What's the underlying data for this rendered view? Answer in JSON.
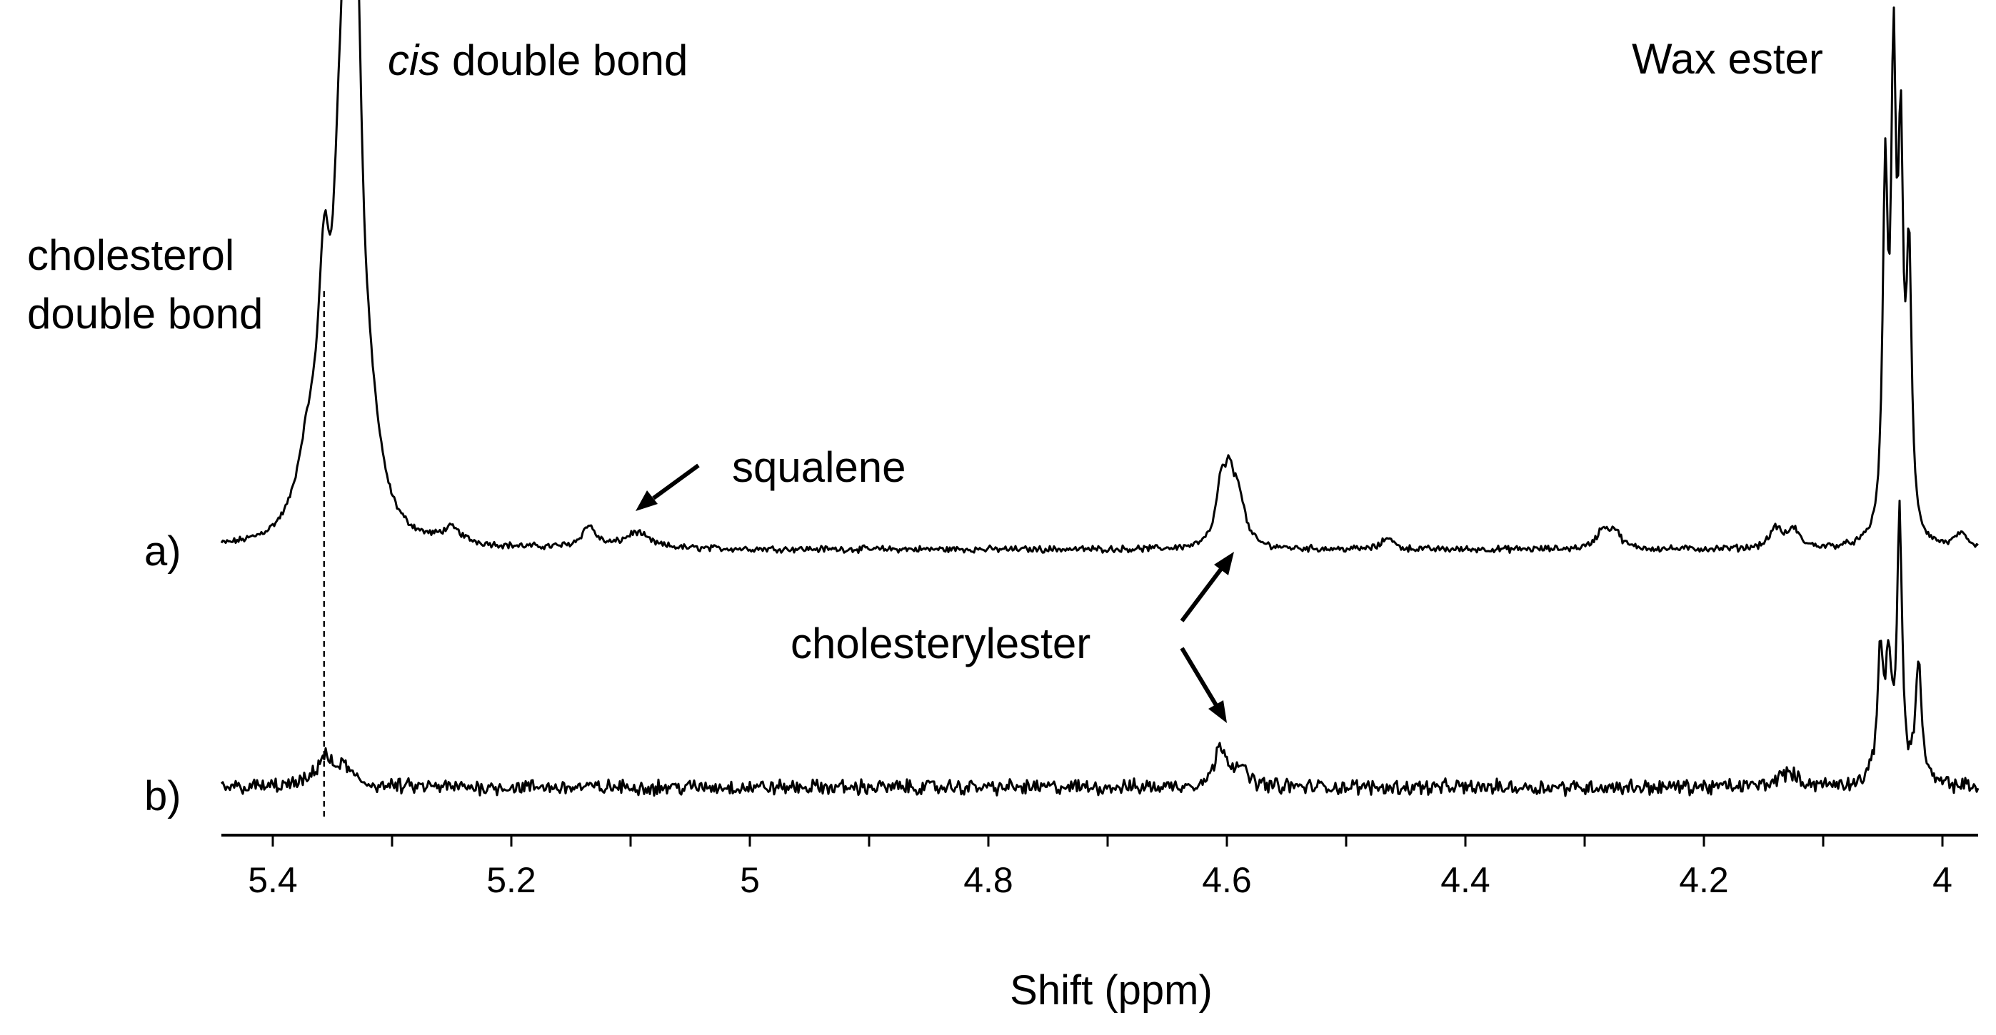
{
  "chart_data": {
    "type": "line",
    "xlabel": "Shift (ppm)",
    "x_reversed": true,
    "xlim": [
      5.445,
      3.97
    ],
    "x_ticks": [
      5.4,
      5.2,
      5,
      4.8,
      4.6,
      4.4,
      4.2,
      4
    ],
    "x_tick_labels": [
      "5.4",
      "5.2",
      "5",
      "4.8",
      "4.6",
      "4.4",
      "4.2",
      "4"
    ],
    "y_axis": "none (relative intensity, stacked traces)",
    "grid": false,
    "series": [
      {
        "name": "a)",
        "baseline": 0,
        "peaks": [
          {
            "x": 5.357,
            "y": 290,
            "w": 0.006
          },
          {
            "x": 5.338,
            "y": 640,
            "w": 0.004
          },
          {
            "x": 5.334,
            "y": 500,
            "w": 0.004
          },
          {
            "x": 5.329,
            "y": 420,
            "w": 0.005
          },
          {
            "x": 5.345,
            "y": 300,
            "w": 0.006
          },
          {
            "x": 5.32,
            "y": 150,
            "w": 0.012
          },
          {
            "x": 5.37,
            "y": 110,
            "w": 0.012
          },
          {
            "x": 5.25,
            "y": 20,
            "w": 0.01
          },
          {
            "x": 5.135,
            "y": 30,
            "w": 0.007
          },
          {
            "x": 5.095,
            "y": 22,
            "w": 0.012
          },
          {
            "x": 4.605,
            "y": 75,
            "w": 0.005
          },
          {
            "x": 4.598,
            "y": 80,
            "w": 0.005
          },
          {
            "x": 4.59,
            "y": 65,
            "w": 0.006
          },
          {
            "x": 4.465,
            "y": 18,
            "w": 0.005
          },
          {
            "x": 4.285,
            "y": 25,
            "w": 0.006
          },
          {
            "x": 4.275,
            "y": 24,
            "w": 0.006
          },
          {
            "x": 4.14,
            "y": 28,
            "w": 0.006
          },
          {
            "x": 4.125,
            "y": 26,
            "w": 0.006
          },
          {
            "x": 4.048,
            "y": 480,
            "w": 0.0025
          },
          {
            "x": 4.041,
            "y": 620,
            "w": 0.0025
          },
          {
            "x": 4.035,
            "y": 500,
            "w": 0.0025
          },
          {
            "x": 4.028,
            "y": 380,
            "w": 0.0025
          },
          {
            "x": 3.985,
            "y": 20,
            "w": 0.005
          }
        ]
      },
      {
        "name": "b)",
        "baseline": 0,
        "peaks": [
          {
            "x": 5.357,
            "y": 40,
            "w": 0.008
          },
          {
            "x": 5.34,
            "y": 25,
            "w": 0.008
          },
          {
            "x": 4.605,
            "y": 55,
            "w": 0.006
          },
          {
            "x": 4.59,
            "y": 25,
            "w": 0.008
          },
          {
            "x": 4.13,
            "y": 20,
            "w": 0.01
          },
          {
            "x": 4.052,
            "y": 180,
            "w": 0.003
          },
          {
            "x": 4.045,
            "y": 150,
            "w": 0.003
          },
          {
            "x": 4.036,
            "y": 370,
            "w": 0.0025
          },
          {
            "x": 4.02,
            "y": 170,
            "w": 0.003
          }
        ]
      }
    ],
    "annotations": [
      {
        "text": "cis double bond",
        "italic_word": "cis",
        "rest": " double bond"
      },
      {
        "text": "Wax ester"
      },
      {
        "text_line1": "cholesterol",
        "text_line2": "double bond"
      },
      {
        "text": "squalene"
      },
      {
        "text": "cholesterylester"
      }
    ]
  }
}
